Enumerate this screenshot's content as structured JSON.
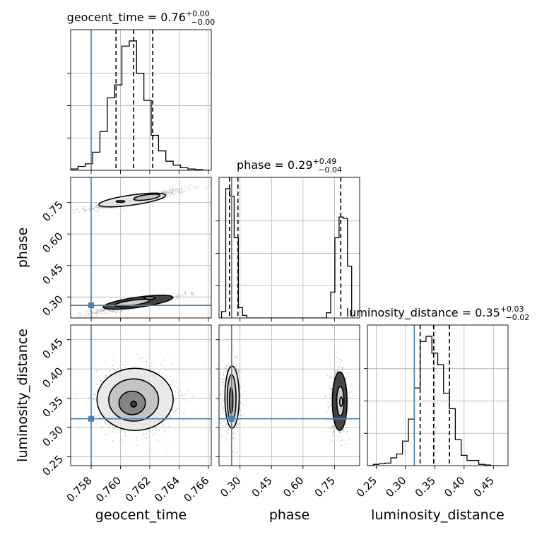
{
  "chart_data": {
    "type": "corner",
    "params": [
      "geocent_time",
      "phase",
      "luminosity_distance"
    ],
    "ranges": {
      "geocent_time": [
        0.7566,
        0.7662
      ],
      "phase": [
        0.2,
        0.87
      ],
      "luminosity_distance": [
        0.235,
        0.475
      ]
    },
    "ticks": {
      "geocent_time": [
        "0.758",
        "0.760",
        "0.762",
        "0.764",
        "0.766"
      ],
      "phase": [
        "0.30",
        "0.45",
        "0.60",
        "0.75"
      ],
      "luminosity_distance": [
        "0.25",
        "0.30",
        "0.35",
        "0.40",
        "0.45"
      ]
    },
    "truths": {
      "geocent_time": 0.758,
      "phase": 0.26,
      "luminosity_distance": 0.315
    },
    "titles": [
      {
        "param": "geocent_time",
        "text": "geocent_time = 0.76",
        "upper": "+0.00",
        "lower": "−0.00"
      },
      {
        "param": "phase",
        "text": "phase = 0.29",
        "upper": "+0.49",
        "lower": "−0.04"
      },
      {
        "param": "luminosity_distance",
        "text": "luminosity_distance = 0.35",
        "upper": "+0.03",
        "lower": "−0.02"
      }
    ],
    "quantiles": {
      "geocent_time": [
        0.7597,
        0.7609,
        0.7622
      ],
      "phase": [
        0.25,
        0.29,
        0.78
      ],
      "luminosity_distance": [
        0.325,
        0.348,
        0.375
      ]
    },
    "histograms": {
      "geocent_time": {
        "edges": [
          0.7566,
          0.7571,
          0.7576,
          0.7581,
          0.7586,
          0.7591,
          0.7596,
          0.7601,
          0.7606,
          0.7611,
          0.7616,
          0.7621,
          0.7626,
          0.7631,
          0.7636,
          0.7641,
          0.7646,
          0.7651,
          0.7656,
          0.7661
        ],
        "counts": [
          0.01,
          0.03,
          0.05,
          0.14,
          0.3,
          0.56,
          0.66,
          0.96,
          1.0,
          0.75,
          0.54,
          0.27,
          0.15,
          0.07,
          0.04,
          0.02,
          0.01,
          0.005,
          0.0
        ]
      },
      "phase": {
        "edges": [
          0.212,
          0.232,
          0.252,
          0.272,
          0.292,
          0.312,
          0.332,
          0.352,
          0.372,
          0.692,
          0.712,
          0.732,
          0.752,
          0.772,
          0.792,
          0.812,
          0.832
        ],
        "counts": [
          0.05,
          1.0,
          0.94,
          0.62,
          0.08,
          0.02,
          0.0,
          0.0,
          0.0,
          0.0,
          0.04,
          0.2,
          0.62,
          0.78,
          0.77,
          0.4,
          0.02
        ]
      },
      "luminosity_distance": {
        "edges": [
          0.235,
          0.245,
          0.255,
          0.265,
          0.275,
          0.285,
          0.295,
          0.305,
          0.315,
          0.325,
          0.335,
          0.345,
          0.355,
          0.365,
          0.375,
          0.385,
          0.395,
          0.405,
          0.415,
          0.425,
          0.435,
          0.445,
          0.455,
          0.465
        ],
        "counts": [
          0.0,
          0.01,
          0.015,
          0.02,
          0.06,
          0.09,
          0.19,
          0.36,
          0.6,
          0.96,
          1.0,
          0.87,
          0.78,
          0.56,
          0.44,
          0.2,
          0.08,
          0.04,
          0.04,
          0.01,
          0.005,
          0.0,
          0.0
        ]
      }
    },
    "pairs": [
      {
        "x": "geocent_time",
        "y": "phase",
        "blobs": [
          {
            "cx": 0.7611,
            "cy": 0.765,
            "sx": 0.0017,
            "sy": 0.025,
            "rho": 0.93,
            "n": 700
          },
          {
            "cx": 0.7611,
            "cy": 0.265,
            "sx": 0.0017,
            "sy": 0.025,
            "rho": 0.93,
            "n": 700
          }
        ],
        "contours": [
          {
            "cx": 0.7608,
            "cy": 0.762,
            "rx": 0.0023,
            "ry": 0.024,
            "rotate": -8
          },
          {
            "cx": 0.7618,
            "cy": 0.775,
            "rx": 0.0009,
            "ry": 0.012,
            "rotate": -8
          },
          {
            "cx": 0.76,
            "cy": 0.755,
            "rx": 0.0003,
            "ry": 0.004,
            "rotate": 0
          },
          {
            "cx": 0.7612,
            "cy": 0.275,
            "rx": 0.0024,
            "ry": 0.024,
            "rotate": -8
          },
          {
            "cx": 0.7608,
            "cy": 0.272,
            "rx": 0.0012,
            "ry": 0.012,
            "rotate": -8
          },
          {
            "cx": 0.762,
            "cy": 0.295,
            "rx": 0.0004,
            "ry": 0.006,
            "rotate": 0
          }
        ]
      },
      {
        "x": "geocent_time",
        "y": "luminosity_distance",
        "blobs": [
          {
            "cx": 0.761,
            "cy": 0.348,
            "sx": 0.0013,
            "sy": 0.027,
            "rho": 0.0,
            "n": 1500
          }
        ],
        "contours": [
          {
            "cx": 0.761,
            "cy": 0.348,
            "rx": 0.0026,
            "ry": 0.053,
            "rotate": 0
          },
          {
            "cx": 0.7609,
            "cy": 0.347,
            "rx": 0.0017,
            "ry": 0.036,
            "rotate": 0
          },
          {
            "cx": 0.7608,
            "cy": 0.342,
            "rx": 0.0009,
            "ry": 0.02,
            "rotate": 0
          },
          {
            "cx": 0.7609,
            "cy": 0.34,
            "rx": 0.0002,
            "ry": 0.005,
            "rotate": 0
          }
        ]
      },
      {
        "x": "phase",
        "y": "luminosity_distance",
        "blobs": [
          {
            "cx": 0.262,
            "cy": 0.352,
            "sx": 0.021,
            "sy": 0.027,
            "rho": 0.0,
            "n": 800
          },
          {
            "cx": 0.77,
            "cy": 0.346,
            "sx": 0.021,
            "sy": 0.027,
            "rho": 0.0,
            "n": 750
          }
        ],
        "contours": [
          {
            "cx": 0.262,
            "cy": 0.352,
            "rx": 0.034,
            "ry": 0.053,
            "rotate": 0
          },
          {
            "cx": 0.26,
            "cy": 0.35,
            "rx": 0.021,
            "ry": 0.04,
            "rotate": 0
          },
          {
            "cx": 0.258,
            "cy": 0.346,
            "rx": 0.008,
            "ry": 0.022,
            "rotate": 0
          },
          {
            "cx": 0.775,
            "cy": 0.345,
            "rx": 0.035,
            "ry": 0.05,
            "rotate": 0
          },
          {
            "cx": 0.778,
            "cy": 0.345,
            "rx": 0.017,
            "ry": 0.025,
            "rotate": 0
          },
          {
            "cx": 0.782,
            "cy": 0.344,
            "rx": 0.007,
            "ry": 0.008,
            "rotate": 0
          }
        ]
      }
    ],
    "colors": {
      "truth": "#4682b4",
      "histogram": "#000000",
      "contour": "#000000",
      "grid": "#b0b0b0",
      "points": "#8c8c8c"
    },
    "grid": true,
    "axis_labels": {
      "x": [
        "geocent_time",
        "phase",
        "luminosity_distance"
      ],
      "y": [
        "phase",
        "luminosity_distance"
      ]
    }
  }
}
